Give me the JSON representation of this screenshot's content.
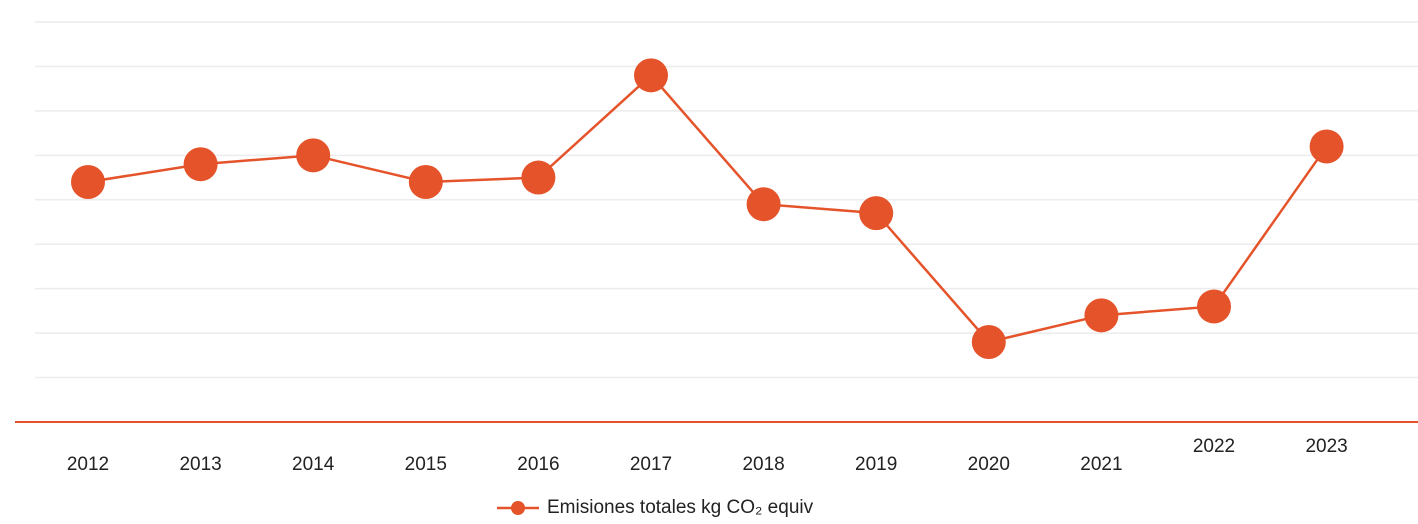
{
  "chart_data": {
    "type": "line",
    "categories": [
      "2012",
      "2013",
      "2014",
      "2015",
      "2016",
      "2017",
      "2018",
      "2019",
      "2020",
      "2021",
      "2022",
      "2023"
    ],
    "series": [
      {
        "name": "Emisiones totales kg CO₂ equiv",
        "color": "#e5532a",
        "values": [
          5.4,
          5.8,
          6.0,
          5.4,
          5.5,
          7.8,
          4.9,
          4.7,
          1.8,
          2.4,
          2.6,
          6.2
        ]
      }
    ],
    "ylim": [
      0,
      9
    ],
    "yticks": [
      1,
      2,
      3,
      4,
      5,
      6,
      7,
      8,
      9
    ],
    "grid": true,
    "legend": "bottom"
  }
}
